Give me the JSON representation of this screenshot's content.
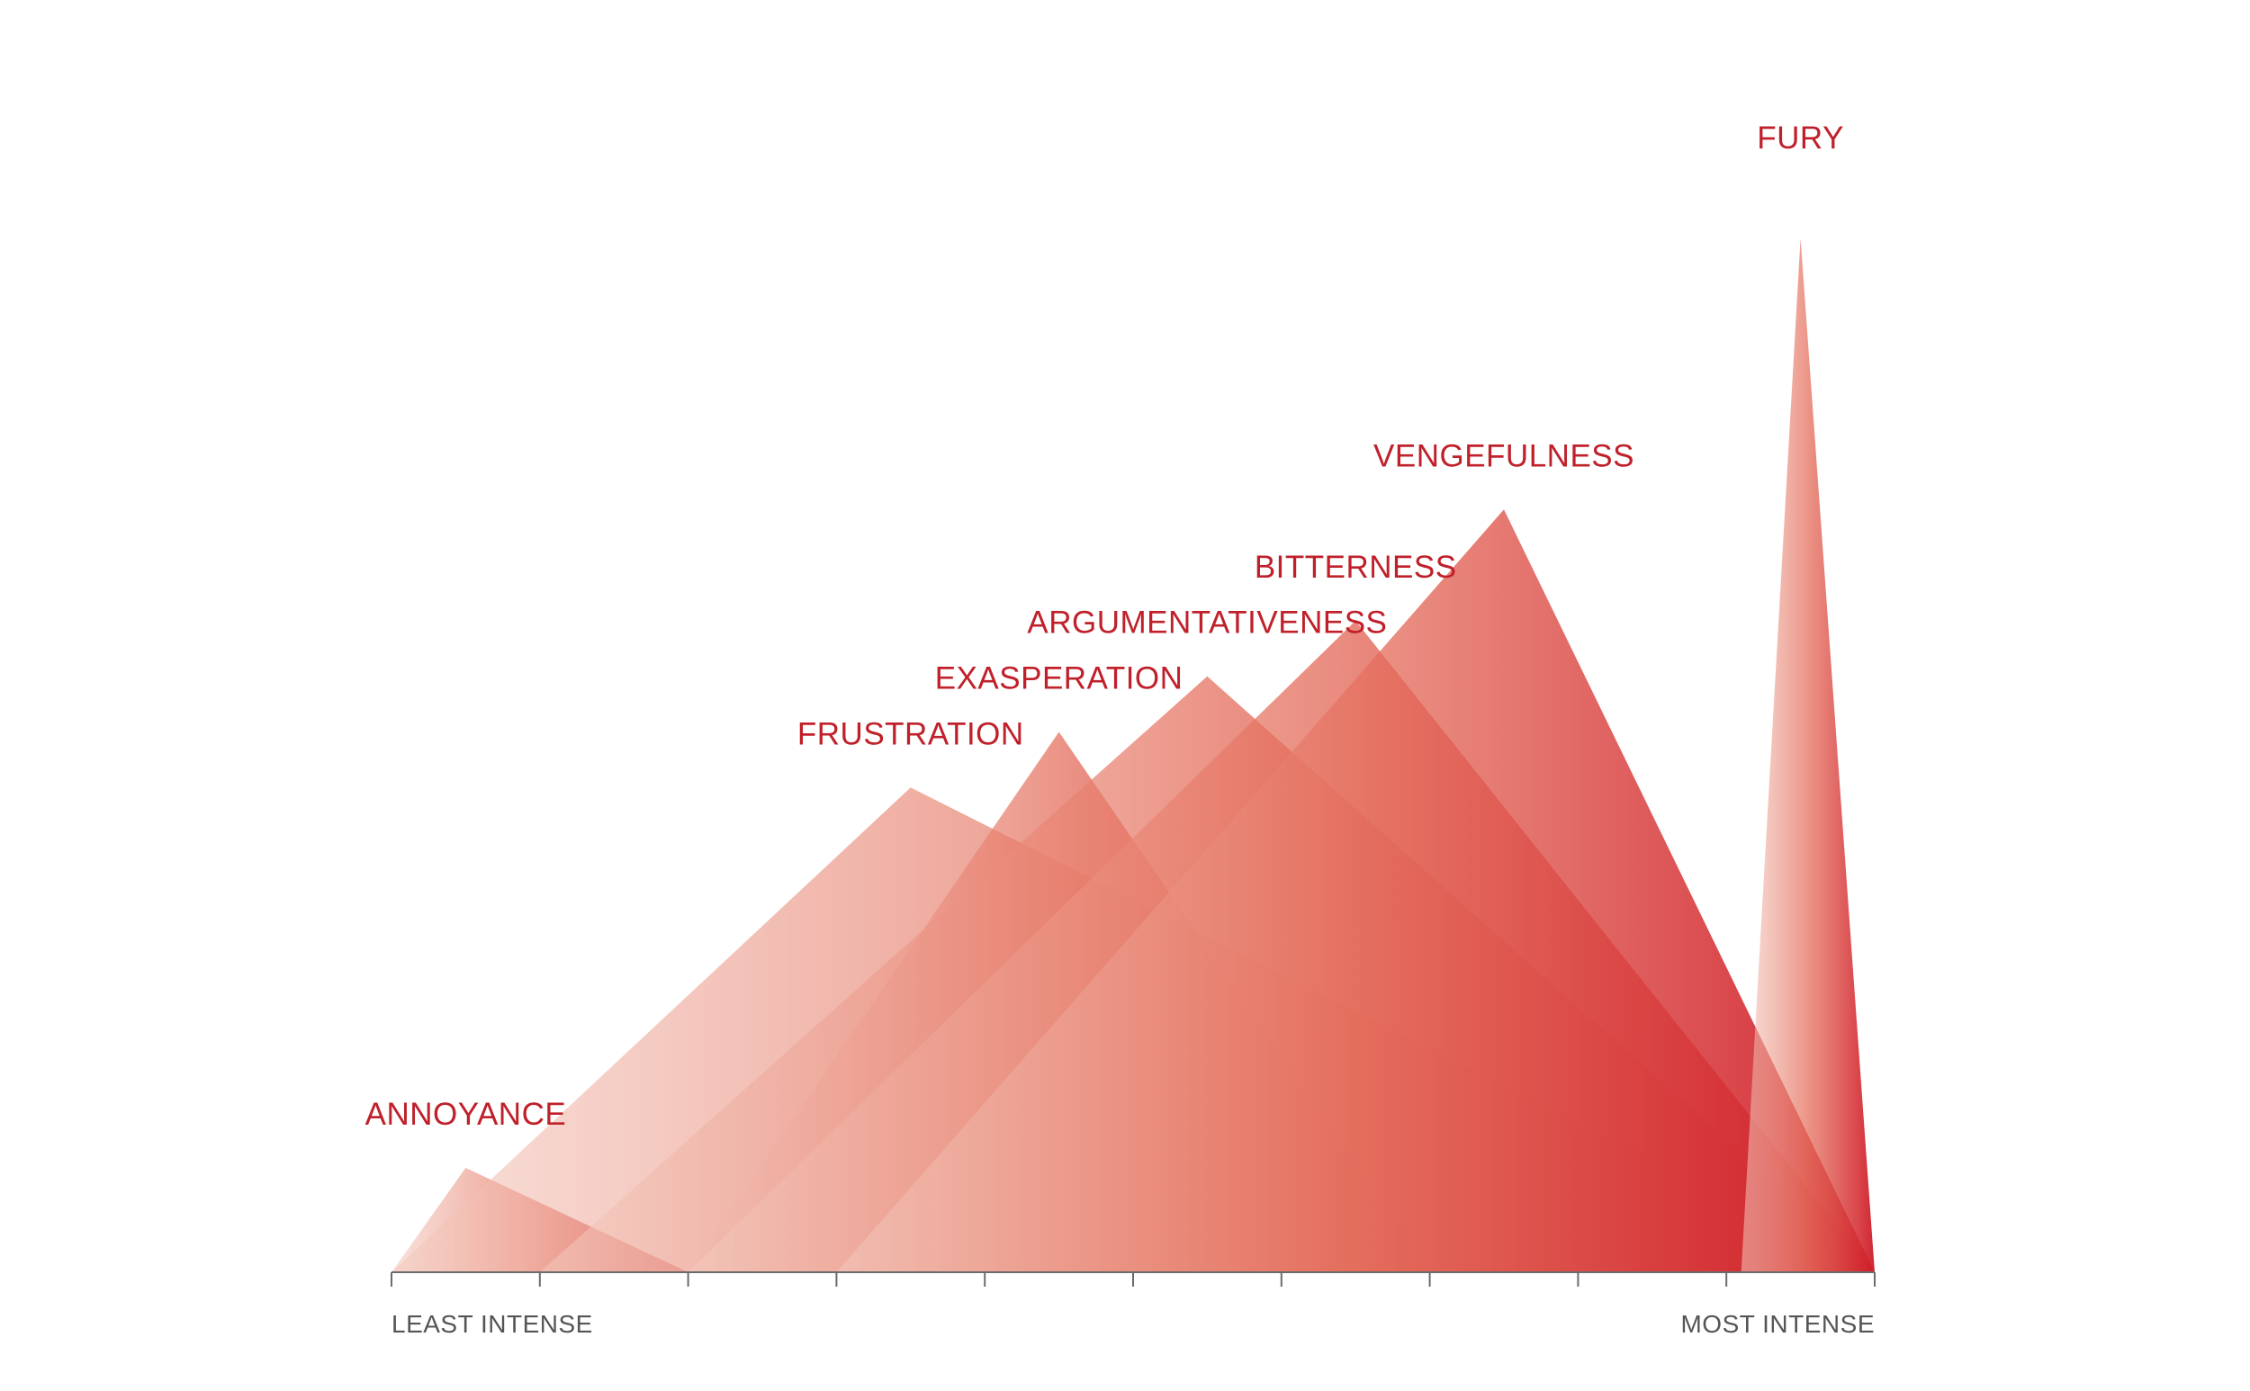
{
  "chart_data": {
    "type": "area",
    "x_scale": {
      "min_label": "LEAST INTENSE",
      "max_label": "MOST INTENSE",
      "range": [
        0,
        10
      ],
      "ticks": [
        0,
        1,
        2,
        3,
        4,
        5,
        6,
        7,
        8,
        9,
        10
      ]
    },
    "y_range": [
      0,
      10
    ],
    "series": [
      {
        "name": "ANNOYANCE",
        "start": 0.0,
        "peak": 0.5,
        "end": 2.0,
        "height": 1.07
      },
      {
        "name": "FRUSTRATION",
        "start": 0.0,
        "peak": 3.5,
        "end": 10.0,
        "height": 4.97
      },
      {
        "name": "EXASPERATION",
        "start": 2.0,
        "peak": 4.5,
        "end": 7.0,
        "height": 5.54
      },
      {
        "name": "ARGUMENTATIVENESS",
        "start": 1.0,
        "peak": 5.5,
        "end": 10.0,
        "height": 6.11
      },
      {
        "name": "BITTERNESS",
        "start": 2.0,
        "peak": 6.5,
        "end": 10.0,
        "height": 6.68
      },
      {
        "name": "VENGEFULNESS",
        "start": 3.0,
        "peak": 7.5,
        "end": 10.0,
        "height": 7.82
      },
      {
        "name": "FURY",
        "start": 9.1,
        "peak": 9.5,
        "end": 10.0,
        "height": 10.6
      }
    ],
    "colors": {
      "light": "#f3c9bd",
      "dark": "#cf1b28",
      "label": "#c0202a",
      "axis": "#6b6b6b"
    }
  }
}
